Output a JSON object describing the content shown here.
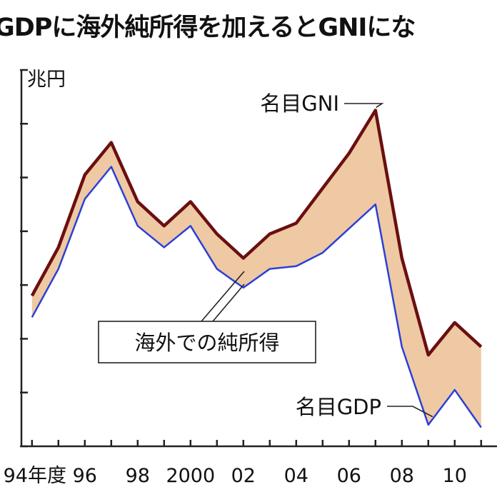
{
  "title": "GDPに海外純所得を加えるとGNIにな",
  "chart_data": {
    "type": "area",
    "title": "GDPに海外純所得を加えるとGNIにな",
    "ylabel": "兆円",
    "ylim": [
      0,
      7
    ],
    "xlim": [
      1993.6,
      2011.6
    ],
    "x": [
      1994,
      1995,
      1996,
      1997,
      1998,
      1999,
      2000,
      2001,
      2002,
      2003,
      2004,
      2005,
      2006,
      2007,
      2008,
      2009,
      2010,
      2011
    ],
    "x_tick_labels": [
      {
        "x": 1994,
        "label": "94年度"
      },
      {
        "x": 1996,
        "label": "96"
      },
      {
        "x": 1998,
        "label": "98"
      },
      {
        "x": 2000,
        "label": "2000"
      },
      {
        "x": 2002,
        "label": "02"
      },
      {
        "x": 2004,
        "label": "04"
      },
      {
        "x": 2006,
        "label": "06"
      },
      {
        "x": 2008,
        "label": "08"
      },
      {
        "x": 2010,
        "label": "10"
      }
    ],
    "series": [
      {
        "name": "名目GNI",
        "color": "#6b0f10",
        "values": [
          2.8,
          3.7,
          5.05,
          5.65,
          4.55,
          4.1,
          4.55,
          3.95,
          3.5,
          3.95,
          4.15,
          4.8,
          5.45,
          6.25,
          3.5,
          1.7,
          2.3,
          1.85
        ]
      },
      {
        "name": "名目GDP",
        "color": "#2b3fd8",
        "values": [
          2.4,
          3.3,
          4.6,
          5.2,
          4.1,
          3.7,
          4.1,
          3.3,
          2.95,
          3.3,
          3.35,
          3.6,
          4.05,
          4.5,
          1.85,
          0.4,
          1.05,
          0.35
        ]
      }
    ],
    "fill_between": {
      "label": "海外での純所得",
      "color": "#eec9a3"
    },
    "annotations": [
      "名目GNI",
      "名目GDP",
      "海外での純所得"
    ],
    "grid": false
  }
}
